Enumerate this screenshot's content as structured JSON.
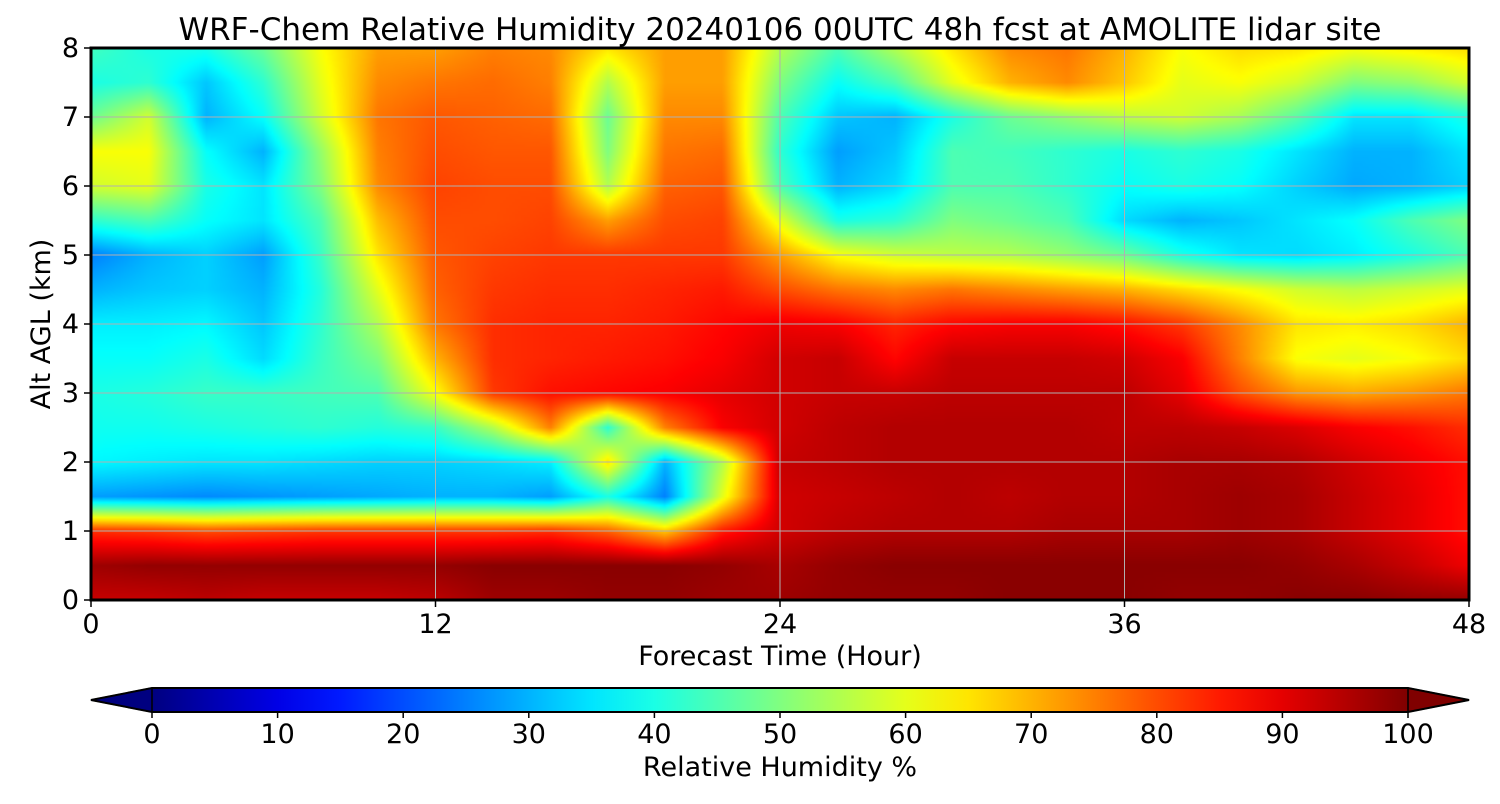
{
  "chart_data": {
    "type": "heatmap",
    "title": "WRF-Chem Relative Humidity 20240106 00UTC 48h fcst at AMOLITE lidar site",
    "xlabel": "Forecast Time (Hour)",
    "ylabel": "Alt AGL (km)",
    "xlim": [
      0,
      48
    ],
    "ylim": [
      0,
      8
    ],
    "x_ticks": [
      0,
      12,
      24,
      36,
      48
    ],
    "y_ticks": [
      0,
      1,
      2,
      3,
      4,
      5,
      6,
      7,
      8
    ],
    "grid": true,
    "colorbar": {
      "label": "Relative Humidity %",
      "colormap": "jet",
      "range": [
        0,
        100
      ],
      "ticks": [
        0,
        10,
        20,
        30,
        40,
        50,
        60,
        70,
        80,
        90,
        100
      ],
      "extend": "both",
      "orientation": "horizontal"
    },
    "x": [
      0,
      2,
      4,
      6,
      8,
      10,
      12,
      14,
      16,
      18,
      20,
      22,
      24,
      26,
      28,
      30,
      32,
      34,
      36,
      38,
      40,
      42,
      44,
      46,
      48
    ],
    "y": [
      0,
      0.5,
      1,
      1.5,
      2,
      2.5,
      3,
      3.5,
      4,
      4.5,
      5,
      5.5,
      6,
      6.5,
      7,
      7.5,
      8
    ],
    "z": [
      [
        93,
        93,
        94,
        93,
        93,
        93,
        94,
        97,
        97,
        98,
        98,
        97,
        97,
        98,
        98,
        98,
        99,
        99,
        99,
        98,
        98,
        99,
        99,
        98,
        98
      ],
      [
        97,
        98,
        98,
        98,
        98,
        98,
        98,
        99,
        99,
        99,
        99,
        98,
        96,
        98,
        99,
        99,
        99,
        99,
        99,
        99,
        99,
        98,
        96,
        93,
        89
      ],
      [
        83,
        82,
        80,
        81,
        82,
        82,
        82,
        82,
        83,
        78,
        68,
        85,
        92,
        94,
        95,
        95,
        95,
        96,
        96,
        96,
        97,
        96,
        93,
        90,
        86
      ],
      [
        28,
        27,
        26,
        27,
        28,
        29,
        30,
        30,
        28,
        40,
        25,
        60,
        92,
        93,
        94,
        95,
        94,
        95,
        95,
        96,
        97,
        96,
        93,
        90,
        86
      ],
      [
        37,
        36,
        35,
        35,
        34,
        33,
        33,
        34,
        36,
        65,
        30,
        55,
        93,
        94,
        95,
        95,
        95,
        95,
        95,
        96,
        96,
        95,
        92,
        89,
        86
      ],
      [
        39,
        39,
        40,
        41,
        42,
        41,
        43,
        55,
        75,
        42,
        75,
        88,
        92,
        94,
        95,
        95,
        95,
        95,
        94,
        94,
        93,
        91,
        88,
        86,
        83
      ],
      [
        40,
        41,
        43,
        43,
        44,
        45,
        62,
        82,
        86,
        87,
        88,
        90,
        92,
        93,
        93,
        94,
        94,
        94,
        94,
        90,
        80,
        73,
        71,
        73,
        76
      ],
      [
        38,
        38,
        40,
        34,
        43,
        50,
        70,
        83,
        84,
        85,
        86,
        88,
        92,
        93,
        87,
        93,
        93,
        93,
        92,
        88,
        75,
        62,
        60,
        62,
        66
      ],
      [
        36,
        36,
        37,
        32,
        42,
        55,
        76,
        83,
        84,
        84,
        85,
        87,
        89,
        88,
        84,
        87,
        88,
        88,
        86,
        82,
        74,
        65,
        64,
        66,
        70
      ],
      [
        30,
        32,
        33,
        30,
        41,
        60,
        78,
        82,
        83,
        83,
        84,
        85,
        80,
        76,
        74,
        76,
        74,
        72,
        70,
        66,
        62,
        58,
        56,
        58,
        60
      ],
      [
        25,
        30,
        33,
        28,
        43,
        65,
        79,
        81,
        82,
        82,
        82,
        82,
        72,
        62,
        58,
        56,
        55,
        52,
        48,
        40,
        35,
        34,
        36,
        40,
        45
      ],
      [
        42,
        45,
        38,
        35,
        45,
        69,
        80,
        80,
        81,
        72,
        80,
        81,
        60,
        40,
        42,
        50,
        48,
        45,
        34,
        30,
        32,
        35,
        38,
        45,
        50
      ],
      [
        58,
        60,
        40,
        35,
        50,
        74,
        81,
        80,
        80,
        55,
        78,
        79,
        45,
        30,
        34,
        45,
        45,
        42,
        38,
        40,
        38,
        33,
        29,
        30,
        33
      ],
      [
        62,
        62,
        38,
        30,
        52,
        75,
        80,
        79,
        79,
        50,
        76,
        77,
        42,
        28,
        32,
        45,
        44,
        42,
        40,
        42,
        40,
        35,
        30,
        30,
        35
      ],
      [
        48,
        58,
        30,
        38,
        58,
        76,
        79,
        78,
        77,
        48,
        74,
        74,
        45,
        32,
        30,
        40,
        48,
        52,
        56,
        58,
        54,
        46,
        35,
        35,
        40
      ],
      [
        40,
        42,
        32,
        42,
        60,
        74,
        76,
        77,
        75,
        55,
        72,
        72,
        50,
        38,
        45,
        60,
        70,
        74,
        68,
        60,
        62,
        58,
        50,
        52,
        58
      ],
      [
        44,
        40,
        40,
        48,
        62,
        72,
        72,
        75,
        74,
        65,
        72,
        72,
        55,
        45,
        55,
        65,
        74,
        76,
        70,
        62,
        66,
        65,
        62,
        64,
        66
      ]
    ]
  }
}
